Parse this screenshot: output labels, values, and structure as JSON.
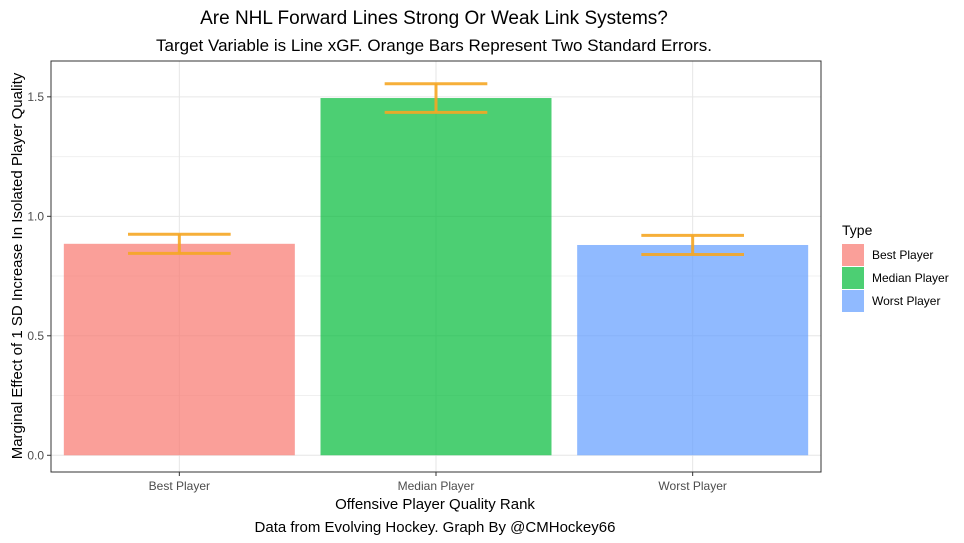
{
  "chart_data": {
    "type": "bar",
    "title": "Are NHL Forward Lines Strong Or Weak Link Systems?",
    "subtitle": "Target Variable is Line xGF. Orange Bars Represent Two Standard Errors.",
    "xlabel": "Offensive Player Quality Rank",
    "ylabel": "Marginal Effect of 1 SD Increase In Isolated Player Quality",
    "caption": "Data from Evolving Hockey. Graph By @CMHockey66",
    "categories": [
      "Best Player",
      "Median Player",
      "Worst Player"
    ],
    "values": [
      0.885,
      1.495,
      0.88
    ],
    "error_low": [
      0.845,
      1.435,
      0.84
    ],
    "error_high": [
      0.925,
      1.555,
      0.92
    ],
    "ylim": [
      -0.07,
      1.65
    ],
    "yticks": [
      0.0,
      0.5,
      1.0,
      1.5
    ],
    "ytick_labels": [
      "0.0",
      "0.5",
      "1.0",
      "1.5"
    ],
    "colors": [
      "#f8766d",
      "#00ba38",
      "#619cff"
    ],
    "bar_opacity": 0.7,
    "errorbar_color": "#f5a623",
    "grid": true,
    "legend": {
      "title": "Type",
      "placement": "right",
      "entries": [
        "Best Player",
        "Median Player",
        "Worst Player"
      ]
    }
  }
}
